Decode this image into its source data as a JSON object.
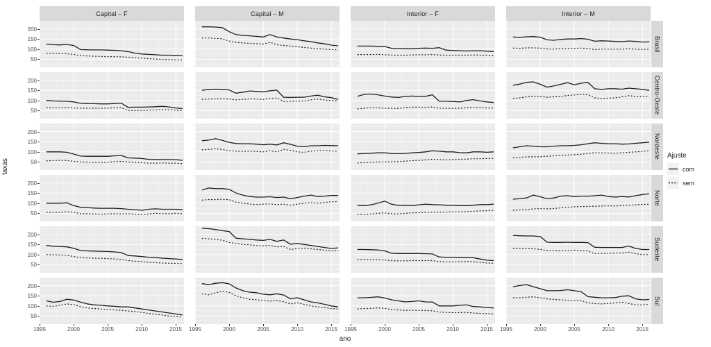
{
  "figure": {
    "ylabel": "taxas",
    "xlabel": "ano",
    "col_headers": [
      "Capital – F",
      "Capital – M",
      "Interior – F",
      "Interior – M"
    ],
    "row_headers": [
      "Brasil",
      "Centro-Oeste",
      "Nordeste",
      "Norte",
      "Sudeste",
      "Sul"
    ],
    "legend": {
      "title": "Ajuste",
      "entries": [
        {
          "label": "com",
          "style": "solid"
        },
        {
          "label": "sem",
          "style": "dotted"
        }
      ]
    },
    "x_ticks": [
      1995,
      2000,
      2005,
      2010,
      2015
    ],
    "y_ticks": [
      50,
      100,
      150,
      200
    ],
    "colors": {
      "panel_bg": "#ebebeb",
      "strip_bg": "#d9d9d9",
      "grid": "#ffffff",
      "line": "#1c1c1c",
      "tick_text": "#4d4d4d"
    }
  },
  "chart_data": {
    "type": "line",
    "title": "",
    "xlabel": "ano",
    "ylabel": "taxas",
    "xlim": [
      1995,
      2016.2
    ],
    "ylim": [
      10,
      240
    ],
    "grid": true,
    "legend_position": "right",
    "x": [
      1996,
      1997,
      1998,
      1999,
      2000,
      2001,
      2002,
      2003,
      2004,
      2005,
      2006,
      2007,
      2008,
      2009,
      2010,
      2011,
      2012,
      2013,
      2014,
      2015,
      2016
    ],
    "facets": [
      {
        "row": "Brasil",
        "col": "Capital – F",
        "com": [
          125,
          122,
          121,
          123,
          118,
          98,
          97,
          96,
          96,
          95,
          94,
          92,
          88,
          80,
          76,
          74,
          72,
          70,
          70,
          69,
          68
        ],
        "sem": [
          80,
          79,
          78,
          77,
          74,
          68,
          66,
          65,
          64,
          63,
          63,
          62,
          60,
          57,
          55,
          53,
          51,
          49,
          48,
          47,
          47
        ]
      },
      {
        "row": "Brasil",
        "col": "Capital – M",
        "com": [
          210,
          210,
          209,
          206,
          186,
          172,
          168,
          166,
          163,
          160,
          172,
          160,
          155,
          150,
          147,
          141,
          137,
          131,
          126,
          120,
          116
        ],
        "sem": [
          155,
          155,
          153,
          151,
          140,
          133,
          131,
          128,
          127,
          125,
          134,
          122,
          118,
          115,
          112,
          108,
          105,
          102,
          100,
          98,
          97
        ]
      },
      {
        "row": "Brasil",
        "col": "Interior – F",
        "com": [
          115,
          115,
          115,
          114,
          113,
          104,
          103,
          102,
          102,
          104,
          105,
          104,
          107,
          95,
          93,
          92,
          91,
          92,
          92,
          90,
          88
        ],
        "sem": [
          73,
          73,
          73,
          74,
          72,
          71,
          70,
          70,
          71,
          72,
          72,
          73,
          71,
          70,
          70,
          70,
          70,
          71,
          70,
          70,
          69
        ]
      },
      {
        "row": "Brasil",
        "col": "Interior – M",
        "com": [
          160,
          158,
          161,
          162,
          159,
          146,
          144,
          148,
          150,
          150,
          152,
          149,
          139,
          141,
          140,
          138,
          137,
          140,
          138,
          135,
          136
        ],
        "sem": [
          105,
          104,
          106,
          106,
          105,
          101,
          100,
          102,
          103,
          103,
          105,
          103,
          98,
          100,
          100,
          100,
          100,
          102,
          100,
          99,
          100
        ]
      },
      {
        "row": "Centro-Oeste",
        "col": "Capital – F",
        "com": [
          100,
          98,
          97,
          96,
          93,
          86,
          85,
          84,
          83,
          83,
          85,
          87,
          66,
          67,
          67,
          68,
          69,
          71,
          68,
          63,
          60
        ],
        "sem": [
          66,
          64,
          64,
          65,
          63,
          62,
          62,
          62,
          61,
          62,
          64,
          65,
          50,
          50,
          51,
          52,
          53,
          55,
          54,
          52,
          50
        ]
      },
      {
        "row": "Centro-Oeste",
        "col": "Capital – M",
        "com": [
          150,
          155,
          156,
          155,
          152,
          136,
          141,
          147,
          145,
          143,
          148,
          151,
          116,
          115,
          116,
          116,
          122,
          126,
          118,
          114,
          105
        ],
        "sem": [
          105,
          107,
          108,
          108,
          107,
          103,
          105,
          108,
          107,
          105,
          110,
          112,
          95,
          96,
          97,
          98,
          103,
          107,
          102,
          100,
          98
        ]
      },
      {
        "row": "Centro-Oeste",
        "col": "Interior – F",
        "com": [
          121,
          130,
          132,
          128,
          122,
          117,
          115,
          120,
          122,
          120,
          121,
          128,
          97,
          96,
          95,
          93,
          100,
          104,
          98,
          93,
          90
        ],
        "sem": [
          58,
          62,
          64,
          64,
          62,
          61,
          60,
          65,
          67,
          67,
          66,
          68,
          62,
          61,
          61,
          61,
          64,
          66,
          64,
          63,
          63
        ]
      },
      {
        "row": "Centro-Oeste",
        "col": "Interior – M",
        "com": [
          175,
          181,
          190,
          192,
          180,
          166,
          172,
          180,
          188,
          178,
          185,
          190,
          158,
          155,
          158,
          158,
          156,
          161,
          158,
          155,
          150
        ],
        "sem": [
          110,
          113,
          118,
          122,
          120,
          116,
          118,
          120,
          125,
          127,
          130,
          129,
          113,
          110,
          112,
          113,
          118,
          124,
          120,
          120,
          122
        ]
      },
      {
        "row": "Nordeste",
        "col": "Capital – F",
        "com": [
          100,
          100,
          100,
          98,
          89,
          79,
          78,
          78,
          78,
          78,
          80,
          82,
          70,
          69,
          67,
          63,
          62,
          62,
          62,
          61,
          58
        ],
        "sem": [
          55,
          57,
          58,
          57,
          53,
          50,
          49,
          48,
          48,
          48,
          52,
          53,
          50,
          48,
          46,
          44,
          44,
          45,
          44,
          44,
          42
        ]
      },
      {
        "row": "Nordeste",
        "col": "Capital – M",
        "com": [
          155,
          158,
          165,
          157,
          147,
          141,
          140,
          140,
          138,
          135,
          138,
          134,
          145,
          137,
          128,
          125,
          130,
          130,
          132,
          131,
          130
        ],
        "sem": [
          110,
          112,
          115,
          112,
          105,
          103,
          102,
          103,
          102,
          100,
          105,
          100,
          112,
          107,
          100,
          98,
          103,
          105,
          106,
          104,
          102
        ]
      },
      {
        "row": "Nordeste",
        "col": "Interior – F",
        "com": [
          90,
          92,
          93,
          95,
          95,
          92,
          91,
          92,
          95,
          97,
          100,
          105,
          103,
          100,
          100,
          96,
          95,
          100,
          100,
          98,
          100
        ],
        "sem": [
          45,
          47,
          48,
          50,
          50,
          51,
          52,
          54,
          56,
          58,
          60,
          63,
          62,
          60,
          62,
          63,
          64,
          66,
          66,
          67,
          68
        ]
      },
      {
        "row": "Nordeste",
        "col": "Interior – M",
        "com": [
          120,
          125,
          130,
          128,
          125,
          125,
          128,
          130,
          130,
          132,
          135,
          140,
          145,
          142,
          140,
          140,
          138,
          139,
          142,
          145,
          148
        ],
        "sem": [
          70,
          73,
          75,
          76,
          76,
          78,
          80,
          82,
          84,
          86,
          88,
          92,
          95,
          95,
          94,
          93,
          95,
          98,
          100,
          102,
          105
        ]
      },
      {
        "row": "Norte",
        "col": "Capital – F",
        "com": [
          100,
          100,
          100,
          102,
          88,
          80,
          78,
          76,
          75,
          75,
          75,
          73,
          70,
          68,
          65,
          70,
          72,
          70,
          70,
          70,
          68
        ],
        "sem": [
          55,
          54,
          55,
          57,
          55,
          48,
          48,
          47,
          46,
          47,
          48,
          47,
          48,
          46,
          44,
          47,
          50,
          48,
          48,
          50,
          48
        ]
      },
      {
        "row": "Norte",
        "col": "Capital – M",
        "com": [
          165,
          175,
          172,
          172,
          169,
          150,
          140,
          133,
          130,
          130,
          132,
          128,
          130,
          122,
          128,
          135,
          140,
          133,
          135,
          138,
          138
        ],
        "sem": [
          115,
          118,
          118,
          120,
          117,
          105,
          100,
          96,
          93,
          95,
          97,
          93,
          95,
          90,
          95,
          100,
          103,
          100,
          103,
          107,
          107
        ]
      },
      {
        "row": "Norte",
        "col": "Interior – F",
        "com": [
          90,
          88,
          92,
          100,
          110,
          95,
          89,
          90,
          88,
          92,
          95,
          93,
          92,
          90,
          90,
          88,
          88,
          90,
          93,
          93,
          95
        ],
        "sem": [
          45,
          45,
          47,
          50,
          52,
          48,
          47,
          50,
          52,
          53,
          54,
          55,
          55,
          56,
          57,
          57,
          58,
          60,
          62,
          63,
          65
        ]
      },
      {
        "row": "Norte",
        "col": "Interior – M",
        "com": [
          120,
          122,
          126,
          140,
          132,
          122,
          126,
          135,
          137,
          133,
          135,
          135,
          137,
          140,
          133,
          130,
          133,
          131,
          137,
          143,
          147
        ],
        "sem": [
          65,
          67,
          68,
          72,
          73,
          72,
          74,
          77,
          80,
          82,
          83,
          84,
          85,
          86,
          87,
          86,
          88,
          90,
          92,
          94,
          95
        ]
      },
      {
        "row": "Sudeste",
        "col": "Capital – F",
        "com": [
          145,
          141,
          140,
          138,
          131,
          120,
          118,
          117,
          116,
          115,
          113,
          110,
          95,
          93,
          90,
          87,
          85,
          82,
          80,
          78,
          76
        ],
        "sem": [
          100,
          99,
          98,
          97,
          90,
          85,
          83,
          82,
          81,
          80,
          78,
          76,
          70,
          67,
          65,
          62,
          60,
          58,
          57,
          56,
          55
        ]
      },
      {
        "row": "Sudeste",
        "col": "Capital – M",
        "com": [
          230,
          228,
          224,
          218,
          214,
          181,
          178,
          175,
          172,
          170,
          175,
          165,
          172,
          151,
          155,
          150,
          145,
          140,
          135,
          130,
          133
        ],
        "sem": [
          180,
          178,
          175,
          171,
          160,
          155,
          150,
          148,
          145,
          143,
          145,
          138,
          140,
          125,
          130,
          132,
          128,
          125,
          122,
          118,
          120
        ]
      },
      {
        "row": "Sudeste",
        "col": "Interior – F",
        "com": [
          125,
          125,
          124,
          123,
          118,
          106,
          105,
          105,
          105,
          105,
          104,
          103,
          88,
          87,
          86,
          85,
          85,
          84,
          78,
          72,
          70
        ],
        "sem": [
          75,
          75,
          74,
          74,
          73,
          70,
          69,
          69,
          70,
          70,
          70,
          70,
          65,
          64,
          64,
          65,
          65,
          65,
          62,
          58,
          57
        ]
      },
      {
        "row": "Sudeste",
        "col": "Interior – M",
        "com": [
          195,
          193,
          192,
          192,
          189,
          161,
          160,
          160,
          161,
          160,
          160,
          159,
          136,
          135,
          135,
          135,
          135,
          142,
          130,
          125,
          125
        ],
        "sem": [
          130,
          130,
          129,
          128,
          126,
          120,
          119,
          118,
          120,
          122,
          120,
          118,
          105,
          105,
          106,
          107,
          107,
          112,
          104,
          100,
          100
        ]
      },
      {
        "row": "Sul",
        "col": "Capital – F",
        "com": [
          125,
          118,
          122,
          133,
          129,
          119,
          110,
          105,
          103,
          100,
          98,
          95,
          95,
          90,
          85,
          80,
          75,
          70,
          65,
          60,
          55
        ],
        "sem": [
          100,
          98,
          103,
          110,
          106,
          96,
          90,
          87,
          85,
          82,
          80,
          78,
          75,
          72,
          68,
          63,
          58,
          55,
          50,
          47,
          45
        ]
      },
      {
        "row": "Sul",
        "col": "Capital – M",
        "com": [
          210,
          205,
          212,
          215,
          209,
          189,
          175,
          168,
          165,
          158,
          155,
          160,
          154,
          135,
          140,
          130,
          120,
          115,
          108,
          100,
          95
        ],
        "sem": [
          160,
          155,
          165,
          172,
          167,
          150,
          140,
          133,
          130,
          126,
          124,
          126,
          121,
          110,
          115,
          108,
          100,
          95,
          92,
          87,
          85
        ]
      },
      {
        "row": "Sul",
        "col": "Interior – F",
        "com": [
          140,
          140,
          142,
          145,
          139,
          130,
          125,
          120,
          122,
          125,
          120,
          119,
          100,
          100,
          100,
          103,
          105,
          97,
          95,
          92,
          90
        ],
        "sem": [
          85,
          87,
          88,
          90,
          88,
          82,
          80,
          78,
          78,
          78,
          77,
          76,
          70,
          68,
          67,
          67,
          68,
          65,
          63,
          62,
          60
        ]
      },
      {
        "row": "Sul",
        "col": "Interior – M",
        "com": [
          195,
          201,
          205,
          195,
          185,
          175,
          175,
          176,
          180,
          175,
          170,
          146,
          143,
          140,
          140,
          141,
          148,
          150,
          135,
          130,
          132
        ],
        "sem": [
          140,
          140,
          143,
          145,
          140,
          135,
          132,
          130,
          128,
          125,
          127,
          115,
          112,
          110,
          112,
          115,
          118,
          112,
          105,
          105,
          107
        ]
      }
    ]
  }
}
